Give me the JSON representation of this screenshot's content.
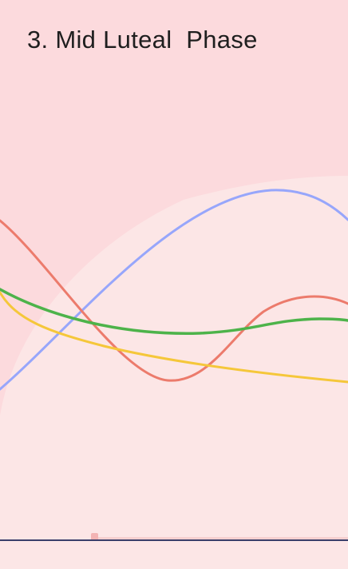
{
  "phase": {
    "title": "3. Mid Luteal  Phase"
  },
  "colors": {
    "background_light": "#FCE6E6",
    "background_panel": "#FCDADD",
    "curve_blue": "#97A6FB",
    "curve_red": "#EC7B6C",
    "curve_green": "#4DB34A",
    "curve_yellow": "#F5C73A",
    "baseline": "#3A3F6B"
  },
  "curves": [
    {
      "icon": "blue-hormone-curve"
    },
    {
      "icon": "red-hormone-curve"
    },
    {
      "icon": "green-hormone-curve"
    },
    {
      "icon": "yellow-hormone-curve"
    }
  ]
}
